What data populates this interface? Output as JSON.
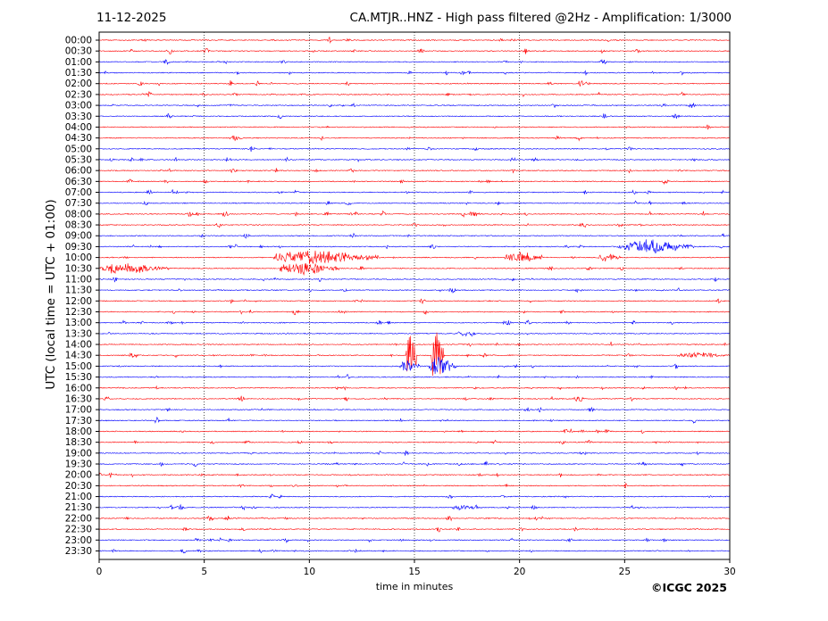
{
  "header": {
    "date": "11-12-2025",
    "title": "CA.MTJR..HNZ - High pass filtered @2Hz - Amplification: 1/3000"
  },
  "footer": {
    "copyright": "©ICGC 2025"
  },
  "chart_data": {
    "type": "line",
    "title": "CA.MTJR..HNZ - High pass filtered @2Hz - Amplification: 1/3000",
    "xlabel": "time in minutes",
    "ylabel": "UTC (local time = UTC + 01:00)",
    "xlim": [
      0,
      30
    ],
    "x_ticks": [
      0,
      5,
      10,
      15,
      20,
      25,
      30
    ],
    "x_tick_labels": [
      "0",
      "5",
      "10",
      "15",
      "20",
      "25",
      "30"
    ],
    "vertical_gridlines": [
      5,
      10,
      15,
      20,
      25
    ],
    "row_labels": [
      "00:00",
      "00:30",
      "01:00",
      "01:30",
      "02:00",
      "02:30",
      "03:00",
      "03:30",
      "04:00",
      "04:30",
      "05:00",
      "05:30",
      "06:00",
      "06:30",
      "07:00",
      "07:30",
      "08:00",
      "08:30",
      "09:00",
      "09:30",
      "10:00",
      "10:30",
      "11:00",
      "11:30",
      "12:00",
      "12:30",
      "13:00",
      "13:30",
      "14:00",
      "14:30",
      "15:00",
      "15:30",
      "16:00",
      "16:30",
      "17:00",
      "17:30",
      "18:00",
      "18:30",
      "19:00",
      "19:30",
      "20:00",
      "20:30",
      "21:00",
      "21:30",
      "22:00",
      "22:30",
      "23:00",
      "23:30"
    ],
    "series_colors": [
      "#ff0000",
      "#0000ff"
    ],
    "color_pattern": "alternating per hour: red rows then blue rows",
    "traced_rows": 48,
    "events": [
      {
        "row": "02:00",
        "start_min": 22.8,
        "end_min": 23.1,
        "amplitude": 0.5
      },
      {
        "row": "03:30",
        "start_min": 3.2,
        "end_min": 3.5,
        "amplitude": 0.35
      },
      {
        "row": "08:00",
        "start_min": 17.6,
        "end_min": 18.2,
        "amplitude": 0.35
      },
      {
        "row": "09:30",
        "start_min": 25.0,
        "end_min": 28.3,
        "amplitude": 0.7
      },
      {
        "row": "10:00",
        "start_min": 8.3,
        "end_min": 13.3,
        "amplitude": 0.75
      },
      {
        "row": "10:00",
        "start_min": 19.3,
        "end_min": 21.1,
        "amplitude": 0.7
      },
      {
        "row": "10:00",
        "start_min": 23.8,
        "end_min": 24.8,
        "amplitude": 0.45
      },
      {
        "row": "10:30",
        "start_min": 0.0,
        "end_min": 3.3,
        "amplitude": 0.6
      },
      {
        "row": "10:30",
        "start_min": 8.6,
        "end_min": 11.4,
        "amplitude": 0.65
      },
      {
        "row": "14:30",
        "start_min": 14.6,
        "end_min": 15.1,
        "amplitude": 3.0
      },
      {
        "row": "14:30",
        "start_min": 15.8,
        "end_min": 16.4,
        "amplitude": 3.2
      },
      {
        "row": "15:00",
        "start_min": 14.3,
        "end_min": 15.3,
        "amplitude": 0.6
      },
      {
        "row": "15:00",
        "start_min": 15.7,
        "end_min": 17.0,
        "amplitude": 1.0
      },
      {
        "row": "21:30",
        "start_min": 16.8,
        "end_min": 18.2,
        "amplitude": 0.3
      },
      {
        "row": "14:30",
        "start_min": 27.5,
        "end_min": 30.0,
        "amplitude": 0.3
      }
    ]
  }
}
